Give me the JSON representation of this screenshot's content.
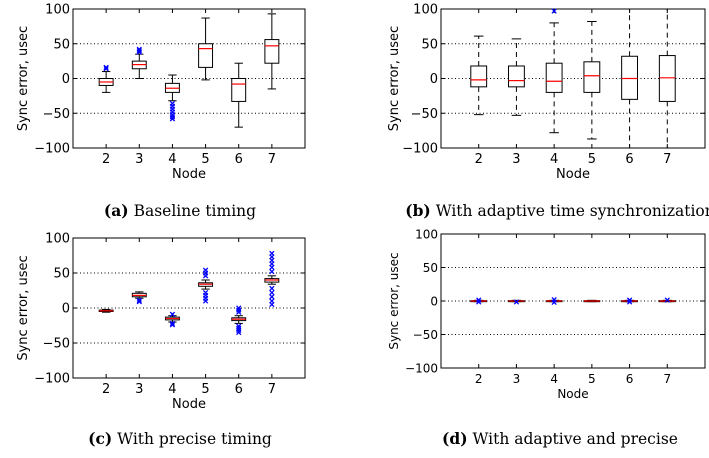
{
  "figure": {
    "captions": [
      {
        "label": "(a)",
        "text": "Baseline timing"
      },
      {
        "label": "(b)",
        "text": "With adaptive time synchronization"
      },
      {
        "label": "(c)",
        "text": "With precise timing"
      },
      {
        "label": "(d)",
        "text": "With adaptive and precise"
      }
    ]
  },
  "colors": {
    "median": "#ff0000",
    "outlier": "#0000ff",
    "box": "#000000",
    "grid": "#000000"
  },
  "chart_data": [
    {
      "type": "box",
      "title": "Baseline timing",
      "xlabel": "Node",
      "ylabel": "Sync error, usec",
      "ylim": [
        -100,
        100
      ],
      "yticks": [
        -100,
        -50,
        0,
        50,
        100
      ],
      "grid": "dotted horizontal",
      "whisker_style": "solid",
      "categories": [
        "2",
        "3",
        "4",
        "5",
        "6",
        "7"
      ],
      "boxes": [
        {
          "node": "2",
          "whislo": -20,
          "q1": -10,
          "med": -5,
          "q3": 0,
          "whishi": 10,
          "fliers": [
            16,
            14
          ]
        },
        {
          "node": "3",
          "whislo": 0,
          "q1": 14,
          "med": 20,
          "q3": 25,
          "whishi": 35,
          "fliers": [
            42,
            40,
            38
          ]
        },
        {
          "node": "4",
          "whislo": -32,
          "q1": -20,
          "med": -14,
          "q3": -7,
          "whishi": 5,
          "fliers": [
            -36,
            -40,
            -44,
            -48,
            -52,
            -55,
            -58
          ]
        },
        {
          "node": "5",
          "whislo": -2,
          "q1": 16,
          "med": 43,
          "q3": 50,
          "whishi": 87,
          "fliers": []
        },
        {
          "node": "6",
          "whislo": -70,
          "q1": -33,
          "med": -8,
          "q3": 0,
          "whishi": 22,
          "fliers": []
        },
        {
          "node": "7",
          "whislo": -15,
          "q1": 22,
          "med": 47,
          "q3": 56,
          "whishi": 93,
          "fliers": []
        }
      ]
    },
    {
      "type": "box",
      "title": "With adaptive time synchronization",
      "xlabel": "Node",
      "ylabel": "Sync error, usec",
      "ylim": [
        -100,
        100
      ],
      "yticks": [
        -100,
        -50,
        0,
        50,
        100
      ],
      "grid": "dotted horizontal",
      "whisker_style": "dashed",
      "categories": [
        "2",
        "3",
        "4",
        "5",
        "6",
        "7"
      ],
      "boxes": [
        {
          "node": "2",
          "whislo": -52,
          "q1": -12,
          "med": -2,
          "q3": 18,
          "whishi": 61,
          "fliers": []
        },
        {
          "node": "3",
          "whislo": -53,
          "q1": -12,
          "med": -3,
          "q3": 18,
          "whishi": 57,
          "fliers": []
        },
        {
          "node": "4",
          "whislo": -78,
          "q1": -20,
          "med": -4,
          "q3": 22,
          "whishi": 80,
          "fliers": [
            97
          ]
        },
        {
          "node": "5",
          "whislo": -87,
          "q1": -20,
          "med": 4,
          "q3": 24,
          "whishi": 82,
          "fliers": []
        },
        {
          "node": "6",
          "whislo": -100,
          "q1": -30,
          "med": 0,
          "q3": 32,
          "whishi": 100,
          "fliers": []
        },
        {
          "node": "7",
          "whislo": -100,
          "q1": -33,
          "med": 1,
          "q3": 33,
          "whishi": 100,
          "fliers": []
        }
      ]
    },
    {
      "type": "box",
      "title": "With precise timing",
      "xlabel": "Node",
      "ylabel": "Sync error, usec",
      "ylim": [
        -100,
        100
      ],
      "yticks": [
        -100,
        -50,
        0,
        50,
        100
      ],
      "grid": "dotted horizontal",
      "whisker_style": "solid",
      "categories": [
        "2",
        "3",
        "4",
        "5",
        "6",
        "7"
      ],
      "boxes": [
        {
          "node": "2",
          "whislo": -6,
          "q1": -5,
          "med": -4,
          "q3": -3,
          "whishi": -2,
          "fliers": []
        },
        {
          "node": "3",
          "whislo": 14,
          "q1": 16,
          "med": 18,
          "q3": 21,
          "whishi": 23,
          "fliers": [
            11,
            9
          ]
        },
        {
          "node": "4",
          "whislo": -20,
          "q1": -17,
          "med": -15,
          "q3": -13,
          "whishi": -11,
          "fliers": [
            -22,
            -24,
            -9
          ]
        },
        {
          "node": "5",
          "whislo": 27,
          "q1": 31,
          "med": 34,
          "q3": 36,
          "whishi": 40,
          "fliers": [
            46,
            50,
            54,
            22,
            18,
            14,
            10
          ]
        },
        {
          "node": "6",
          "whislo": -22,
          "q1": -18,
          "med": -16,
          "q3": -14,
          "whishi": -11,
          "fliers": [
            -26,
            -29,
            -32,
            -35,
            -6,
            -3,
            0
          ]
        },
        {
          "node": "7",
          "whislo": 34,
          "q1": 37,
          "med": 40,
          "q3": 42,
          "whishi": 46,
          "fliers": [
            52,
            58,
            63,
            68,
            73,
            78,
            28,
            22,
            16,
            10,
            5
          ]
        }
      ]
    },
    {
      "type": "box",
      "title": "With adaptive and precise",
      "xlabel": "Node",
      "ylabel": "Sync error, usec",
      "ylim": [
        -100,
        100
      ],
      "yticks": [
        -100,
        -50,
        0,
        50,
        100
      ],
      "grid": "dotted horizontal",
      "whisker_style": "solid",
      "categories": [
        "2",
        "3",
        "4",
        "5",
        "6",
        "7"
      ],
      "boxes": [
        {
          "node": "2",
          "whislo": -1,
          "q1": -0.5,
          "med": 0,
          "q3": 0.5,
          "whishi": 1,
          "fliers": [
            1.5,
            -1.5
          ]
        },
        {
          "node": "3",
          "whislo": -1,
          "q1": -0.5,
          "med": 0,
          "q3": 0.5,
          "whishi": 1,
          "fliers": [
            -1.5
          ]
        },
        {
          "node": "4",
          "whislo": -1,
          "q1": -0.5,
          "med": 0,
          "q3": 0.5,
          "whishi": 1,
          "fliers": [
            2,
            -2
          ]
        },
        {
          "node": "5",
          "whislo": -1,
          "q1": -0.5,
          "med": 0,
          "q3": 0.5,
          "whishi": 1,
          "fliers": []
        },
        {
          "node": "6",
          "whislo": -1,
          "q1": -0.5,
          "med": 0,
          "q3": 0.5,
          "whishi": 1,
          "fliers": [
            1.5,
            -1.5
          ]
        },
        {
          "node": "7",
          "whislo": -1,
          "q1": -0.5,
          "med": 0,
          "q3": 0.5,
          "whishi": 1,
          "fliers": [
            1.5
          ]
        }
      ]
    }
  ]
}
